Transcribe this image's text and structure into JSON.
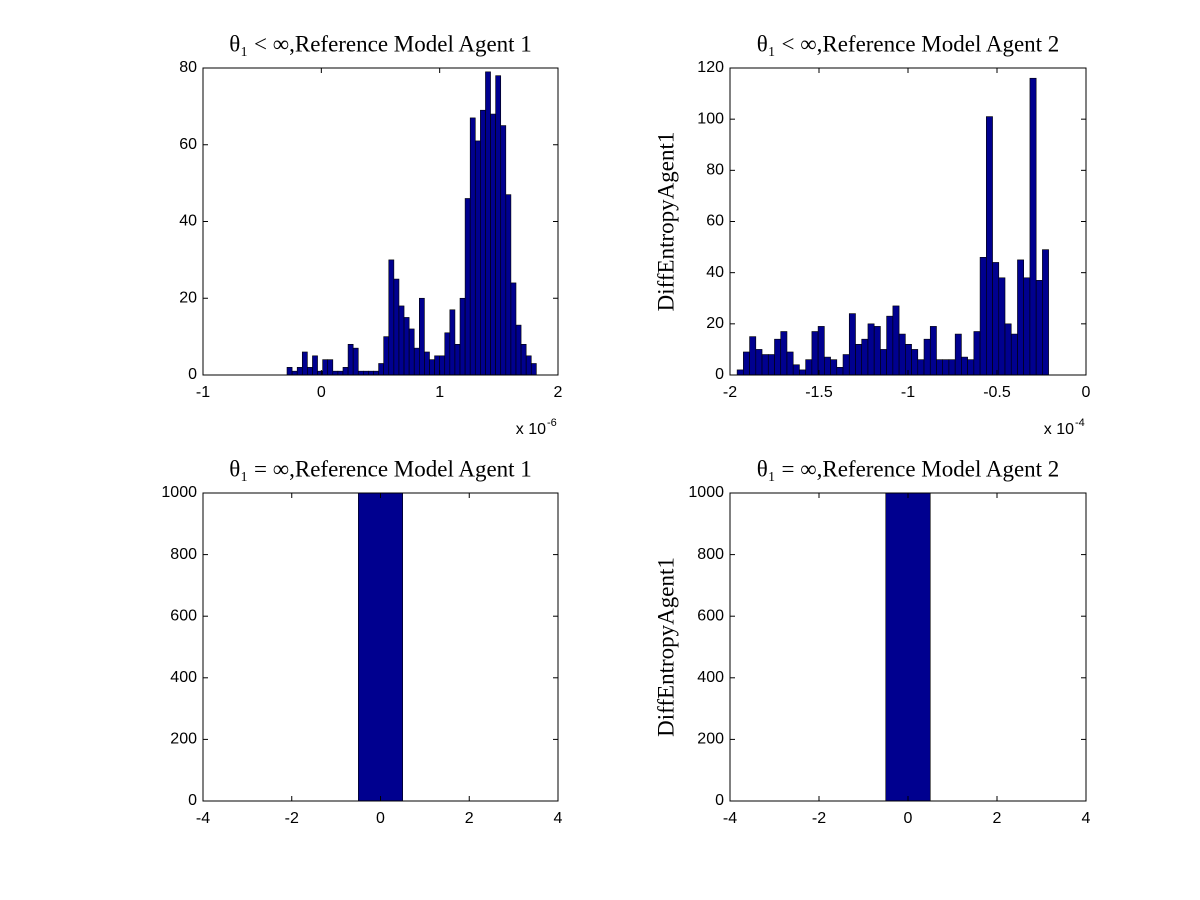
{
  "chart_data": [
    {
      "type": "histogram",
      "title": "θ₁ < ∞,Reference Model Agent 1",
      "color": "#00008f",
      "bins": [
        -0.29,
        -0.247,
        -0.204,
        -0.161,
        -0.118,
        -0.075,
        -0.032,
        0.011,
        0.054,
        0.097,
        0.14,
        0.183,
        0.226,
        0.269,
        0.312,
        0.355,
        0.398,
        0.441,
        0.484,
        0.527,
        0.57,
        0.613,
        0.656,
        0.699,
        0.742,
        0.785,
        0.828,
        0.871,
        0.914,
        0.957,
        1.0,
        1.043,
        1.086,
        1.129,
        1.172,
        1.215,
        1.258,
        1.301,
        1.344,
        1.387,
        1.43,
        1.473,
        1.516,
        1.559,
        1.602,
        1.645,
        1.688,
        1.731,
        1.774,
        1.817
      ],
      "values": [
        2,
        1,
        2,
        6,
        2,
        5,
        1,
        4,
        4,
        1,
        1,
        2,
        8,
        7,
        1,
        1,
        1,
        1,
        3,
        10,
        30,
        25,
        18,
        15,
        12,
        7,
        20,
        6,
        4,
        5,
        5,
        11,
        17,
        8,
        20,
        46,
        67,
        61,
        69,
        79,
        68,
        78,
        65,
        47,
        24,
        13,
        8,
        5,
        3
      ],
      "xlim": [
        -1,
        2
      ],
      "xticks": [
        -1,
        0,
        1,
        2
      ],
      "ylim": [
        0,
        80
      ],
      "yticks": [
        0,
        20,
        40,
        60,
        80
      ],
      "x_multiplier": {
        "base": "x 10",
        "exponent": "-6"
      },
      "grid": false
    },
    {
      "type": "histogram",
      "title": "θ₁ < ∞,Reference Model Agent 2",
      "ylabel": "DiffEntropyAgent1",
      "color": "#00008f",
      "bins": [
        -1.96,
        -1.925,
        -1.89,
        -1.855,
        -1.82,
        -1.785,
        -1.75,
        -1.715,
        -1.68,
        -1.645,
        -1.61,
        -1.575,
        -1.54,
        -1.505,
        -1.47,
        -1.435,
        -1.4,
        -1.365,
        -1.33,
        -1.295,
        -1.26,
        -1.225,
        -1.19,
        -1.155,
        -1.12,
        -1.085,
        -1.05,
        -1.015,
        -0.98,
        -0.945,
        -0.91,
        -0.875,
        -0.84,
        -0.805,
        -0.77,
        -0.735,
        -0.7,
        -0.665,
        -0.63,
        -0.595,
        -0.56,
        -0.525,
        -0.49,
        -0.455,
        -0.42,
        -0.385,
        -0.35,
        -0.315,
        -0.28,
        -0.245,
        -0.21
      ],
      "values": [
        2,
        9,
        15,
        10,
        8,
        8,
        14,
        17,
        9,
        4,
        2,
        6,
        17,
        19,
        7,
        6,
        3,
        8,
        24,
        12,
        14,
        20,
        19,
        10,
        23,
        27,
        16,
        12,
        10,
        6,
        14,
        19,
        6,
        6,
        6,
        16,
        7,
        6,
        17,
        46,
        101,
        44,
        38,
        20,
        16,
        45,
        38,
        116,
        37,
        49
      ],
      "xlim": [
        -2,
        0
      ],
      "xticks": [
        -2,
        -1.5,
        -1,
        -0.5,
        0
      ],
      "ylim": [
        0,
        120
      ],
      "yticks": [
        0,
        20,
        40,
        60,
        80,
        100,
        120
      ],
      "x_multiplier": {
        "base": "x 10",
        "exponent": "-4"
      },
      "grid": false
    },
    {
      "type": "histogram",
      "title": "θ₁ = ∞,Reference Model Agent 1",
      "color": "#00008f",
      "bins": [
        -0.5,
        0.5
      ],
      "values": [
        1000
      ],
      "xlim": [
        -4,
        4
      ],
      "xticks": [
        -4,
        -2,
        0,
        2,
        4
      ],
      "ylim": [
        0,
        1000
      ],
      "yticks": [
        0,
        200,
        400,
        600,
        800,
        1000
      ],
      "grid": false
    },
    {
      "type": "histogram",
      "title": "θ₁ = ∞,Reference Model Agent 2",
      "ylabel": "DiffEntropyAgent1",
      "color": "#00008f",
      "bins": [
        -0.5,
        0.5
      ],
      "values": [
        1000
      ],
      "xlim": [
        -4,
        4
      ],
      "xticks": [
        -4,
        -2,
        0,
        2,
        4
      ],
      "ylim": [
        0,
        1000
      ],
      "yticks": [
        0,
        200,
        400,
        600,
        800,
        1000
      ],
      "grid": false
    }
  ]
}
